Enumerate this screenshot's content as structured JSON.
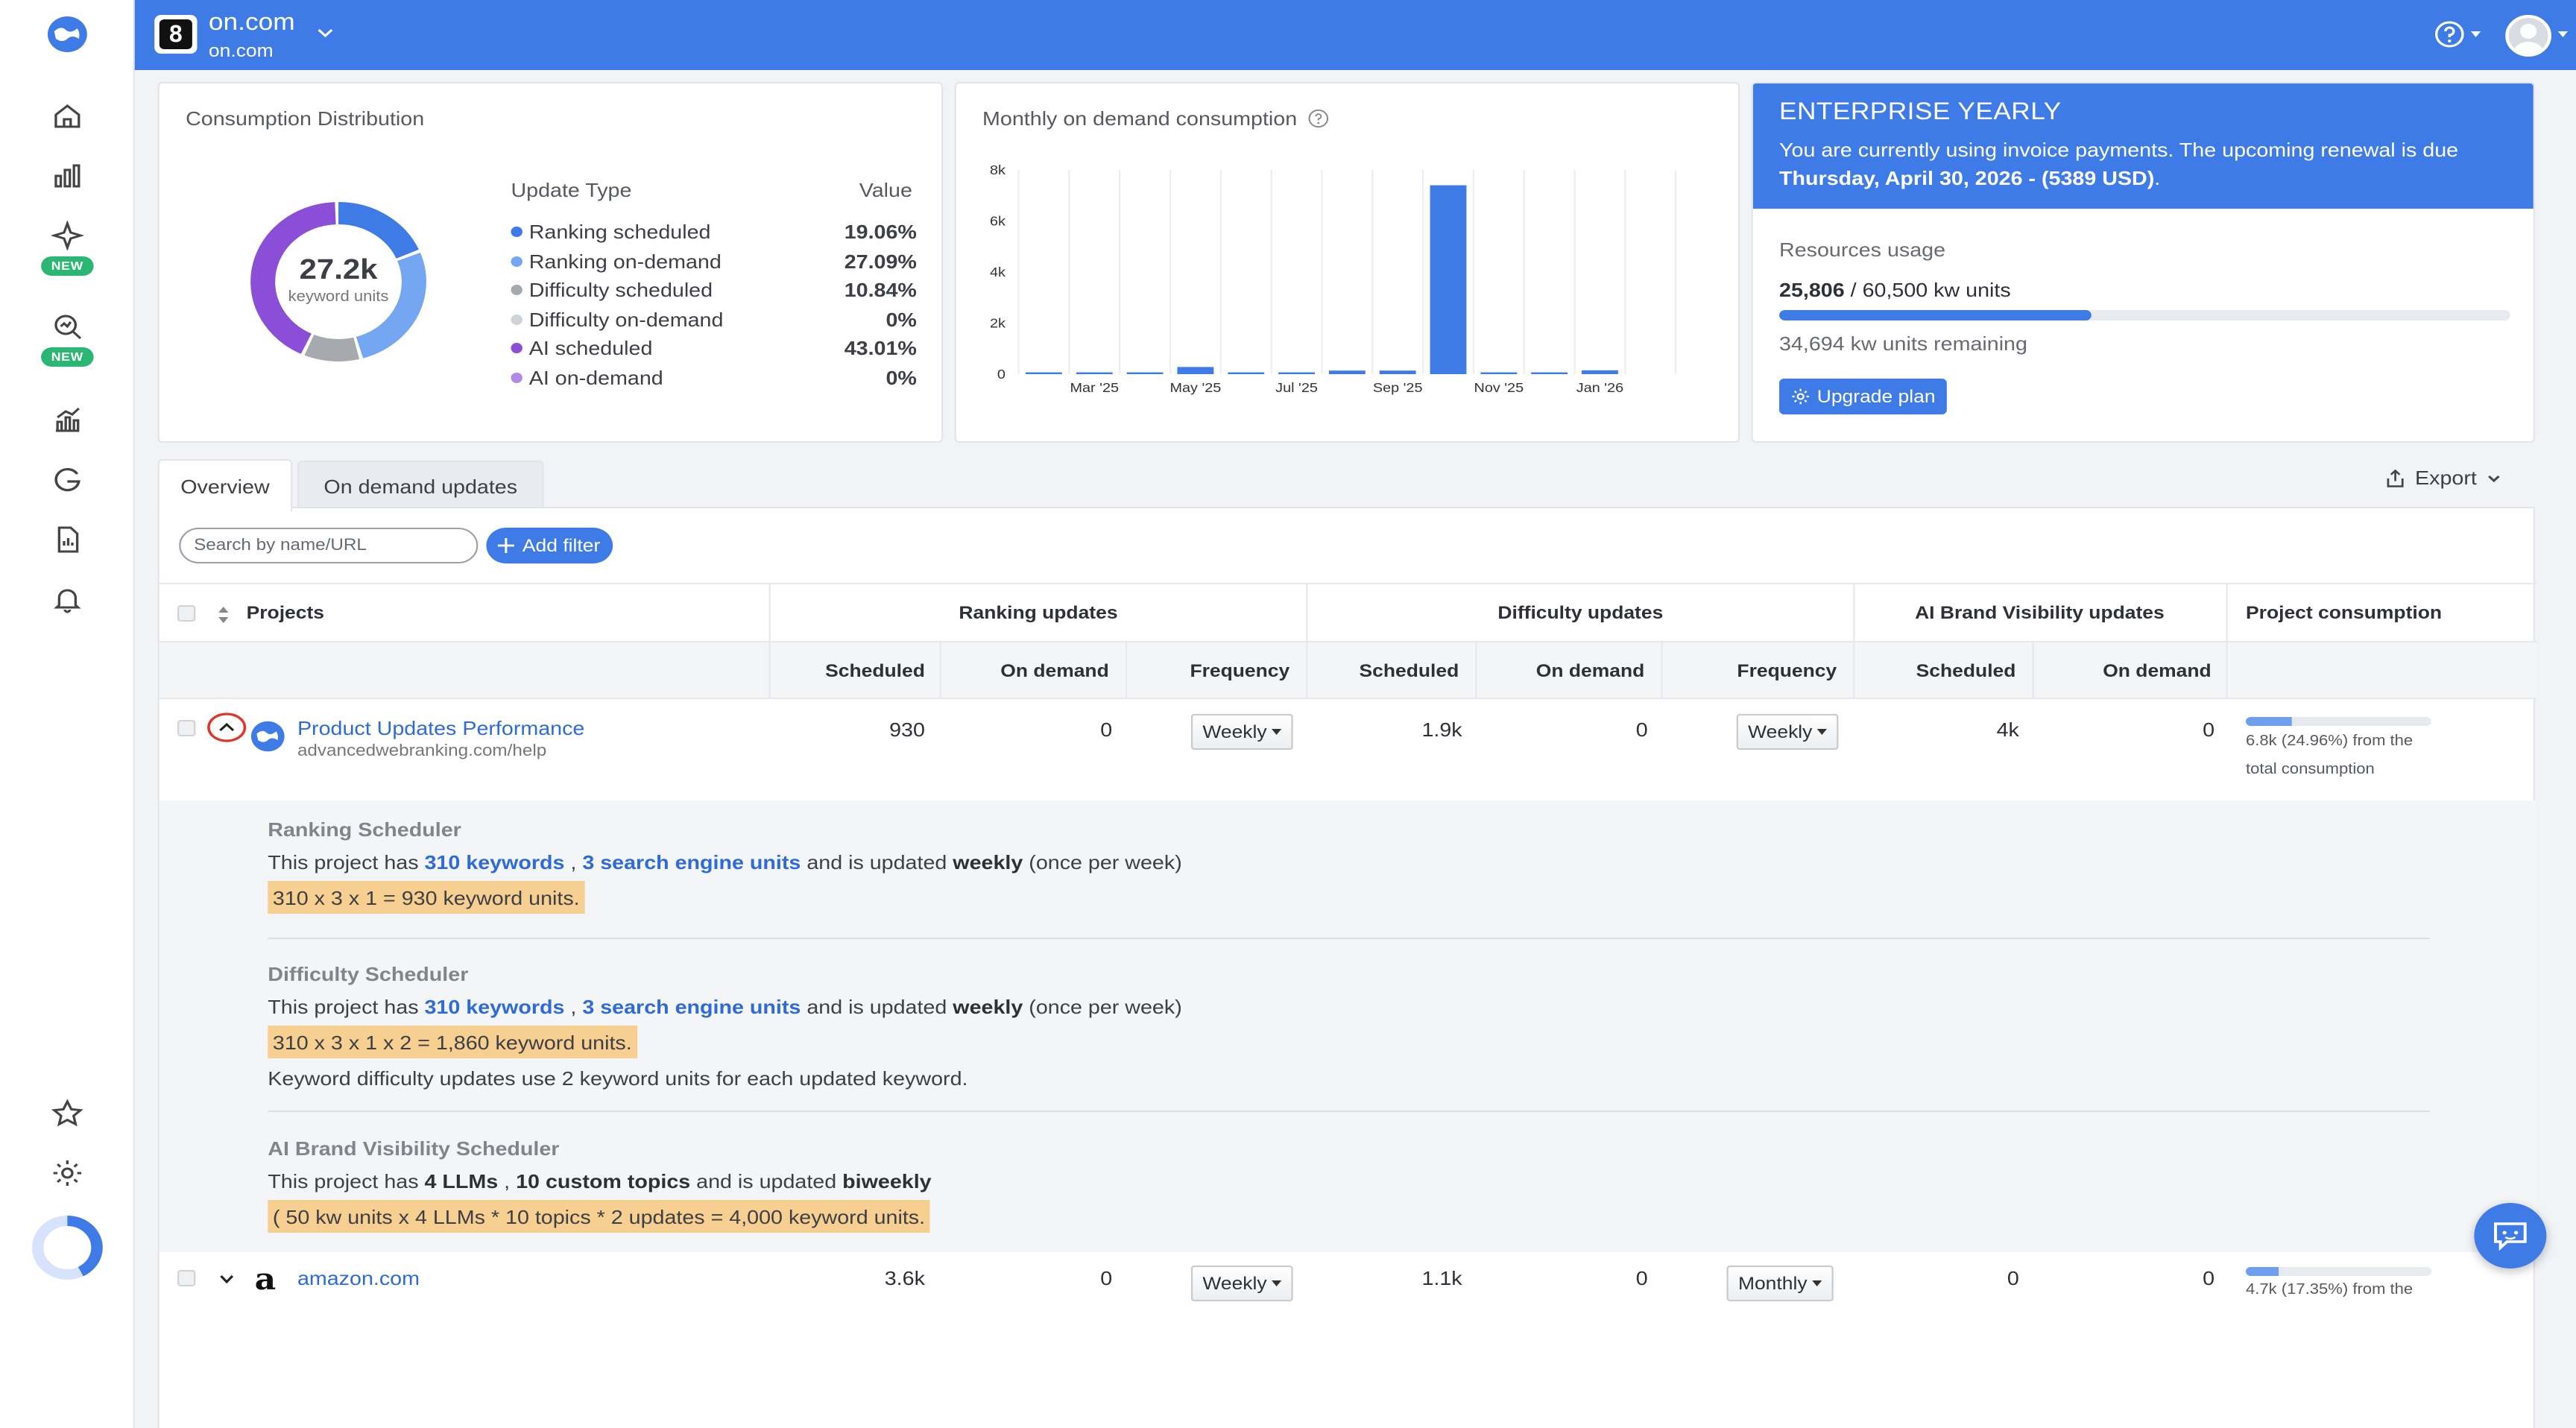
{
  "header": {
    "account_name": "on.com",
    "account_domain": "on.com",
    "logo_letter": "8"
  },
  "consumption_distribution": {
    "title": "Consumption Distribution",
    "center_value": "27.2k",
    "center_label": "keyword units",
    "col_type": "Update Type",
    "col_value": "Value",
    "items": [
      {
        "label": "Ranking scheduled",
        "value": "19.06%",
        "pct": 19.06,
        "color": "#3f7be6"
      },
      {
        "label": "Ranking on-demand",
        "value": "27.09%",
        "pct": 27.09,
        "color": "#74a6f2"
      },
      {
        "label": "Difficulty scheduled",
        "value": "10.84%",
        "pct": 10.84,
        "color": "#a6a9ae"
      },
      {
        "label": "Difficulty on-demand",
        "value": "0%",
        "pct": 0,
        "color": "#cfd2d6"
      },
      {
        "label": "AI scheduled",
        "value": "43.01%",
        "pct": 43.01,
        "color": "#8a4fd6"
      },
      {
        "label": "AI on-demand",
        "value": "0%",
        "pct": 0,
        "color": "#b18ae6"
      }
    ]
  },
  "monthly_chart": {
    "title": "Monthly on demand consumption",
    "y_ticks": [
      "8k",
      "6k",
      "4k",
      "2k",
      "0"
    ],
    "x_tick_labels": [
      "Mar '25",
      "May '25",
      "Jul '25",
      "Sep '25",
      "Nov '25",
      "Jan '26"
    ]
  },
  "chart_data": {
    "type": "bar",
    "categories": [
      "Feb '25",
      "Mar '25",
      "Apr '25",
      "May '25",
      "Jun '25",
      "Jul '25",
      "Aug '25",
      "Sep '25",
      "Oct '25",
      "Nov '25",
      "Dec '25",
      "Jan '26",
      "Feb '26"
    ],
    "values": [
      30,
      40,
      40,
      280,
      30,
      60,
      140,
      140,
      7400,
      20,
      20,
      150,
      0
    ],
    "title": "Monthly on demand consumption",
    "xlabel": "",
    "ylabel": "",
    "ylim": [
      0,
      8000
    ],
    "grid": "vertical",
    "color": "#3f7be6"
  },
  "plan": {
    "title": "ENTERPRISE YEARLY",
    "text_prefix": "You are currently using invoice payments. The upcoming renewal is due",
    "renewal": "Thursday, April 30, 2026 - (5389 USD)",
    "text_suffix": ".",
    "resources_label": "Resources usage",
    "used": "25,806",
    "total": " / 60,500 kw units",
    "used_fraction": 0.4265,
    "remaining": "34,694 kw units remaining",
    "upgrade_label": "Upgrade plan"
  },
  "tabs": {
    "overview": "Overview",
    "on_demand": "On demand updates"
  },
  "export_label": "Export",
  "search": {
    "placeholder": "Search by name/URL"
  },
  "add_filter_label": "Add filter",
  "table": {
    "projects": "Projects",
    "ranking_updates": "Ranking updates",
    "difficulty_updates": "Difficulty updates",
    "ai_updates": "AI Brand Visibility updates",
    "project_consumption": "Project consumption",
    "scheduled": "Scheduled",
    "on_demand": "On demand",
    "frequency": "Frequency"
  },
  "rows": [
    {
      "name": "Product Updates Performance",
      "url": "advancedwebranking.com/help",
      "rank_sched": "930",
      "rank_ondemand": "0",
      "rank_freq": "Weekly",
      "diff_sched": "1.9k",
      "diff_ondemand": "0",
      "diff_freq": "Weekly",
      "ai_sched": "4k",
      "ai_ondemand": "0",
      "consumption_text": "6.8k (24.96%) from the total consumption",
      "consumption_fraction": 0.2496
    },
    {
      "name": "amazon.com",
      "url": "",
      "rank_sched": "3.6k",
      "rank_ondemand": "0",
      "rank_freq": "Weekly",
      "diff_sched": "1.1k",
      "diff_ondemand": "0",
      "diff_freq": "Monthly",
      "ai_sched": "0",
      "ai_ondemand": "0",
      "consumption_text": "4.7k (17.35%) from the",
      "consumption_fraction": 0.1735
    }
  ],
  "details": {
    "ranking": {
      "title": "Ranking Scheduler",
      "prefix": "This project has ",
      "kw": "310 keywords",
      "sep": " , ",
      "units": "3 search engine units",
      "mid": " and is updated ",
      "freq": "weekly",
      "suffix": " (once per week)",
      "formula": "310 x 3 x 1 = 930 keyword units."
    },
    "difficulty": {
      "title": "Difficulty Scheduler",
      "prefix": "This project has ",
      "kw": "310 keywords",
      "sep": " , ",
      "units": "3 search engine units",
      "mid": " and is updated ",
      "freq": "weekly",
      "suffix": " (once per week)",
      "formula": "310 x 3 x 1 x 2 = 1,860 keyword units.",
      "note": "Keyword difficulty updates use 2 keyword units for each updated keyword."
    },
    "ai": {
      "title": "AI Brand Visibility Scheduler",
      "prefix": "This project has ",
      "llms": "4 LLMs",
      "sep": " , ",
      "topics": "10 custom topics",
      "mid": " and is updated ",
      "freq": "biweekly",
      "formula": "( 50 kw units x 4 LLMs * 10 topics * 2 updates = 4,000 keyword units."
    }
  },
  "sidebar_badges": {
    "new1": "NEW",
    "new2": "NEW"
  }
}
